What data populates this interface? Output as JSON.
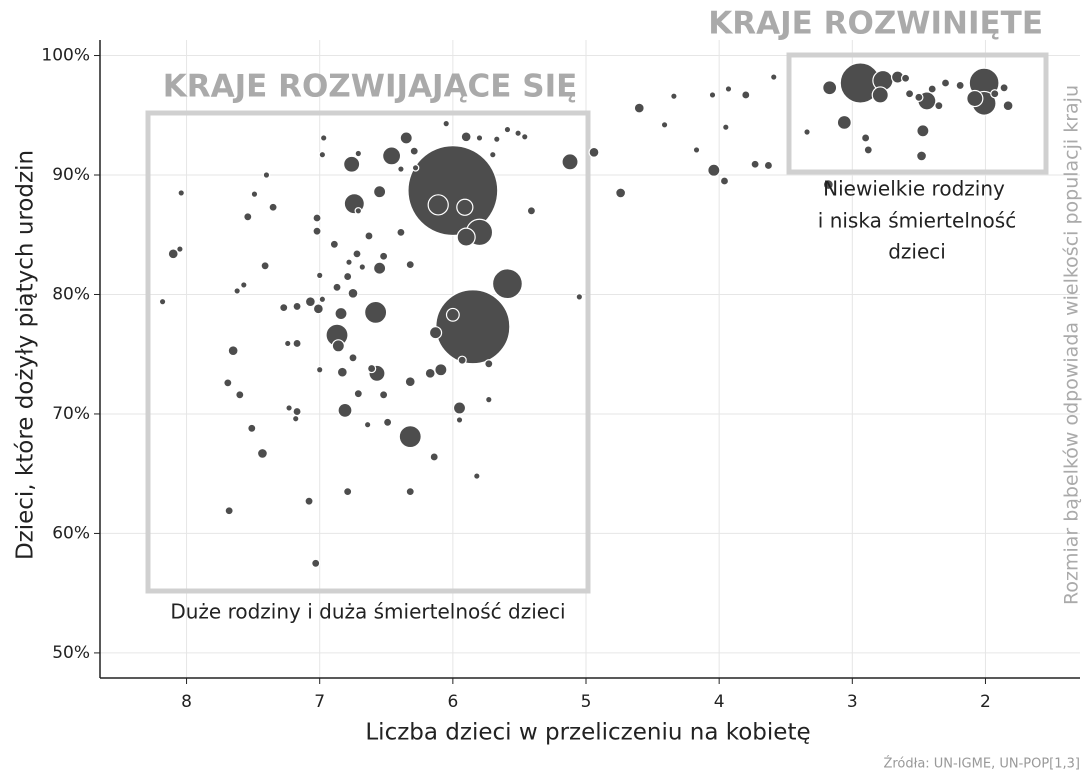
{
  "chart_data": {
    "type": "scatter",
    "y_label": "Dzieci, które dożyły piątych urodzin",
    "x_label": "Liczba dzieci w przeliczeniu na kobietę",
    "size_label": "Rozmiar bąbelków odpowiada wielkości populacji kraju",
    "source": "Źródła: UN-IGME, UN-POP[1,3]",
    "annotations": [
      "KRAJE ROZWIJAJĄCE SIĘ",
      "KRAJE ROZWINIĘTE",
      "Niewielkie rodziny",
      "i niska śmiertelność",
      "dzieci",
      "Duże rodziny i duża śmiertelność dzieci"
    ],
    "color": "#4d4d4d",
    "xlim": [
      8.65,
      1.29
    ],
    "ylim": [
      47.9,
      101.3
    ],
    "xticks": [
      8,
      7,
      6,
      5,
      4,
      3,
      2
    ],
    "yticks": [
      {
        "value": 50,
        "label": "50%"
      },
      {
        "value": 60,
        "label": "60%"
      },
      {
        "value": 70,
        "label": "70%"
      },
      {
        "value": 80,
        "label": "80%"
      },
      {
        "value": 90,
        "label": "90%"
      },
      {
        "value": 100,
        "label": "100%"
      }
    ],
    "grid": true,
    "x": [
      6.0,
      5.85,
      5.59,
      5.8,
      6.11,
      6.32,
      6.58,
      6.74,
      6.87,
      6.76,
      6.46,
      6.57,
      6.81,
      6.55,
      6.35,
      6.09,
      5.91,
      6.0,
      5.9,
      6.13,
      5.12,
      7.65,
      7.43,
      7.68,
      7.03,
      8.1,
      8.18,
      8.05,
      8.04,
      7.69,
      7.6,
      7.51,
      7.54,
      7.35,
      7.4,
      7.49,
      7.62,
      7.57,
      7.41,
      7.24,
      7.27,
      7.17,
      7.17,
      7.23,
      7.18,
      7.17,
      7.08,
      7.07,
      7.02,
      7.02,
      7.01,
      6.98,
      6.97,
      7.0,
      6.98,
      7.0,
      6.89,
      6.87,
      6.84,
      6.86,
      6.83,
      6.79,
      6.78,
      6.79,
      6.75,
      6.75,
      6.72,
      6.71,
      6.71,
      6.71,
      6.68,
      6.64,
      6.63,
      6.61,
      6.55,
      6.52,
      6.52,
      6.49,
      6.39,
      6.39,
      6.32,
      6.32,
      6.32,
      6.29,
      6.28,
      6.17,
      6.14,
      6.05,
      5.95,
      5.95,
      5.93,
      5.9,
      5.82,
      5.8,
      5.73,
      5.73,
      5.7,
      5.67,
      5.59,
      5.51,
      5.46,
      5.41,
      5.05,
      4.94,
      4.74,
      4.6,
      4.41,
      4.34,
      4.17,
      4.05,
      4.04,
      3.96,
      3.95,
      3.93,
      3.8,
      3.73,
      3.63,
      3.59,
      3.34,
      3.17,
      3.18,
      3.06,
      2.94,
      2.9,
      2.88,
      2.79,
      2.77,
      2.66,
      2.6,
      2.57,
      2.5,
      2.44,
      2.47,
      2.48,
      2.4,
      2.35,
      2.3,
      2.19,
      2.08,
      2.01,
      2.01,
      1.83,
      1.86,
      1.93
    ],
    "values": [
      88.7,
      77.3,
      80.9,
      85.2,
      87.5,
      68.1,
      78.5,
      87.6,
      76.6,
      90.9,
      91.6,
      73.4,
      70.3,
      88.6,
      93.1,
      73.7,
      87.3,
      78.3,
      84.8,
      76.8,
      91.1,
      75.3,
      66.7,
      61.9,
      57.5,
      83.4,
      79.4,
      83.8,
      88.5,
      72.6,
      71.6,
      68.8,
      86.5,
      87.3,
      90.0,
      88.4,
      80.3,
      80.8,
      82.4,
      75.9,
      78.9,
      79.0,
      75.9,
      70.5,
      69.6,
      70.2,
      62.7,
      79.4,
      86.4,
      85.3,
      78.8,
      91.7,
      93.1,
      81.6,
      79.6,
      73.7,
      84.2,
      80.6,
      78.4,
      75.7,
      73.5,
      81.5,
      82.7,
      63.5,
      80.1,
      74.7,
      83.4,
      91.8,
      71.7,
      87.0,
      82.3,
      69.1,
      84.9,
      73.8,
      82.2,
      71.6,
      83.2,
      69.3,
      90.5,
      85.2,
      82.5,
      72.7,
      63.5,
      92.0,
      90.6,
      73.4,
      66.4,
      94.3,
      70.5,
      69.5,
      74.5,
      93.2,
      64.8,
      93.1,
      74.2,
      71.2,
      91.7,
      93.0,
      93.8,
      93.5,
      93.2,
      87.0,
      79.8,
      91.9,
      88.5,
      95.6,
      94.2,
      96.6,
      92.1,
      96.7,
      90.4,
      89.5,
      94.0,
      97.2,
      96.7,
      90.9,
      90.8,
      98.2,
      93.6,
      97.3,
      89.2,
      94.4,
      97.7,
      93.1,
      92.1,
      96.7,
      97.9,
      98.2,
      98.1,
      96.8,
      96.5,
      96.2,
      93.7,
      91.6,
      97.2,
      95.8,
      97.7,
      97.5,
      96.4,
      97.7,
      96.0,
      95.8,
      97.3,
      96.8
    ],
    "sizes": [
      1000,
      680,
      110,
      85,
      50,
      60,
      60,
      50,
      60,
      32,
      40,
      32,
      24,
      18,
      18,
      18,
      32,
      20,
      40,
      18,
      32,
      12,
      12,
      8,
      8,
      12,
      5,
      5,
      5,
      8,
      8,
      8,
      8,
      8,
      5,
      5,
      5,
      5,
      8,
      5,
      8,
      8,
      8,
      5,
      5,
      8,
      8,
      12,
      8,
      8,
      12,
      5,
      5,
      5,
      5,
      5,
      8,
      8,
      18,
      18,
      12,
      8,
      5,
      8,
      12,
      8,
      8,
      5,
      8,
      5,
      5,
      5,
      8,
      8,
      18,
      8,
      8,
      8,
      5,
      8,
      8,
      12,
      8,
      8,
      5,
      12,
      8,
      5,
      18,
      5,
      8,
      12,
      5,
      5,
      8,
      5,
      5,
      5,
      5,
      5,
      5,
      8,
      5,
      12,
      12,
      12,
      5,
      5,
      5,
      5,
      18,
      8,
      5,
      5,
      8,
      8,
      8,
      5,
      5,
      24,
      12,
      24,
      200,
      8,
      8,
      32,
      50,
      18,
      8,
      8,
      8,
      40,
      18,
      12,
      8,
      8,
      8,
      8,
      32,
      110,
      70,
      12,
      8,
      8
    ]
  }
}
